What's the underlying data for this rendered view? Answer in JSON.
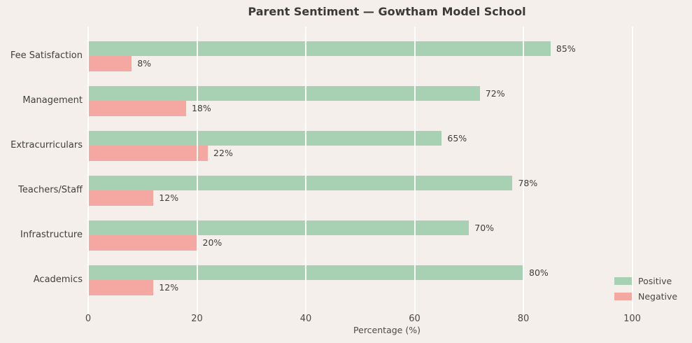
{
  "chart_data": {
    "type": "bar",
    "orientation": "horizontal",
    "title": "Parent Sentiment — Gowtham Model School",
    "xlabel": "Percentage (%)",
    "categories": [
      "Fee Satisfaction",
      "Management",
      "Extracurriculars",
      "Teachers/Staff",
      "Infrastructure",
      "Academics"
    ],
    "series": [
      {
        "name": "Positive",
        "color": "#a7d1b2",
        "values": [
          85,
          72,
          65,
          78,
          70,
          80
        ]
      },
      {
        "name": "Negative",
        "color": "#f5a8a1",
        "values": [
          8,
          18,
          22,
          12,
          20,
          12
        ]
      }
    ],
    "value_labels": {
      "Positive": [
        "85%",
        "72%",
        "65%",
        "78%",
        "70%",
        "80%"
      ],
      "Negative": [
        "8%",
        "18%",
        "22%",
        "12%",
        "20%",
        "12%"
      ]
    },
    "xlim": [
      0,
      110
    ],
    "xticks": [
      0,
      20,
      40,
      60,
      80,
      100
    ],
    "grid": "vertical-white-over-bars",
    "legend_position": "lower-right"
  },
  "colors": {
    "background": "#f4efea",
    "grid": "#ffffff",
    "title_text": "#3a3a3a",
    "tick_text": "#4a4a4a",
    "value_text": "#3d3d3d"
  }
}
